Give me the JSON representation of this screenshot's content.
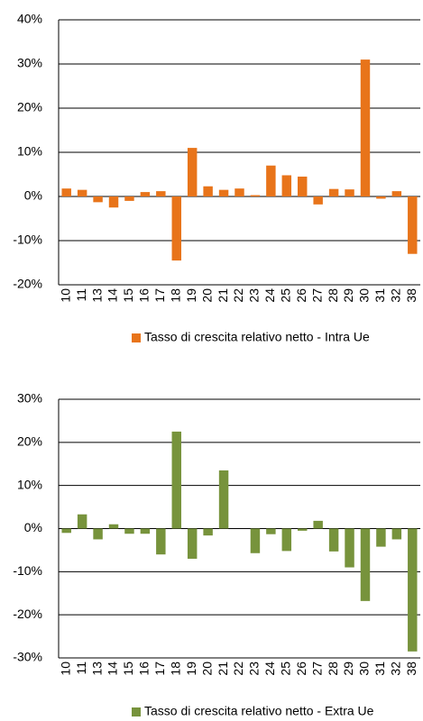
{
  "chart_data": [
    {
      "type": "bar",
      "categories": [
        "10",
        "11",
        "13",
        "14",
        "15",
        "16",
        "17",
        "18",
        "19",
        "20",
        "21",
        "22",
        "23",
        "24",
        "25",
        "26",
        "27",
        "28",
        "29",
        "30",
        "31",
        "32",
        "38"
      ],
      "series": [
        {
          "name": "Tasso di crescita relativo netto - Intra Ue",
          "color": "#e8741a",
          "values": [
            1.8,
            1.5,
            -1.3,
            -2.5,
            -1.0,
            1.0,
            1.2,
            -14.5,
            11.0,
            2.3,
            1.5,
            1.8,
            0.3,
            7.0,
            4.8,
            4.5,
            -1.8,
            1.7,
            1.6,
            31.0,
            -0.5,
            1.2,
            -13.0
          ]
        }
      ],
      "ylim": [
        -20,
        40
      ],
      "yticks": [
        {
          "value": -20,
          "label": "-20%"
        },
        {
          "value": -10,
          "label": "-10%"
        },
        {
          "value": 0,
          "label": "0%"
        },
        {
          "value": 10,
          "label": "10%"
        },
        {
          "value": 20,
          "label": "20%"
        },
        {
          "value": 30,
          "label": "30%"
        },
        {
          "value": 40,
          "label": "40%"
        }
      ],
      "grid": true,
      "legend": "bottom"
    },
    {
      "type": "bar",
      "categories": [
        "10",
        "11",
        "13",
        "14",
        "15",
        "16",
        "17",
        "18",
        "19",
        "20",
        "21",
        "22",
        "23",
        "24",
        "25",
        "26",
        "27",
        "28",
        "29",
        "30",
        "31",
        "32",
        "38"
      ],
      "series": [
        {
          "name": "Tasso di crescita relativo netto - Extra Ue",
          "color": "#77933c",
          "values": [
            -1.0,
            3.3,
            -2.5,
            1.0,
            -1.2,
            -1.2,
            -6.0,
            22.5,
            -7.0,
            -1.6,
            13.5,
            0,
            -5.7,
            -1.3,
            -5.2,
            -0.5,
            1.8,
            -5.3,
            -9.0,
            -16.8,
            -4.2,
            -2.5,
            -28.5
          ]
        }
      ],
      "ylim": [
        -30,
        30
      ],
      "yticks": [
        {
          "value": -30,
          "label": "-30%"
        },
        {
          "value": -20,
          "label": "-20%"
        },
        {
          "value": -10,
          "label": "-10%"
        },
        {
          "value": 0,
          "label": "0%"
        },
        {
          "value": 10,
          "label": "10%"
        },
        {
          "value": 20,
          "label": "20%"
        },
        {
          "value": 30,
          "label": "30%"
        }
      ],
      "grid": true,
      "legend": "bottom"
    }
  ]
}
